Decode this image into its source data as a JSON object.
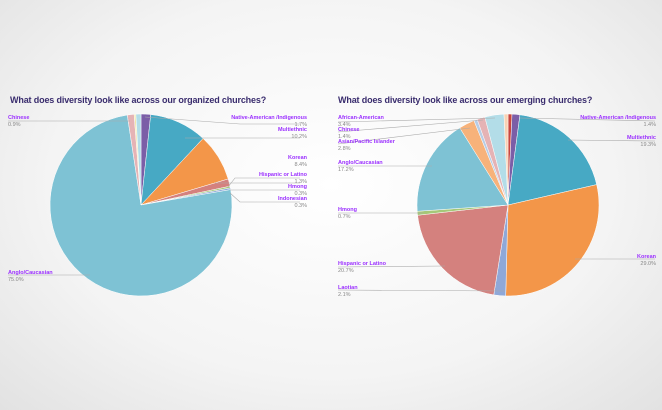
{
  "chart_data": [
    {
      "type": "pie",
      "title": "What does diversity look like across our organized churches?",
      "slices": [
        {
          "label": "Native-American /Indigenous",
          "pct_label": "1.7%",
          "value": 1.7,
          "color": "#7b5ea7"
        },
        {
          "label": "Multiethnic",
          "pct_label": "10.2%",
          "value": 10.2,
          "color": "#47a9c4"
        },
        {
          "label": "Korean",
          "pct_label": "8.4%",
          "value": 8.4,
          "color": "#f39649"
        },
        {
          "label": "Hispanic or Latino",
          "pct_label": "1.3%",
          "value": 1.3,
          "color": "#d4817e"
        },
        {
          "label": "Hmong",
          "pct_label": "0.3%",
          "value": 0.3,
          "color": "#a5c878"
        },
        {
          "label": "Indonesian",
          "pct_label": "0.3%",
          "value": 0.3,
          "color": "#8fa8d8"
        },
        {
          "label": "Anglo/Caucasian",
          "pct_label": "75.0%",
          "value": 75.0,
          "color": "#7ec2d4"
        },
        {
          "value": 1.2,
          "color": "#e5b3b5"
        },
        {
          "value": 0.3,
          "color": "#f0e6a8"
        },
        {
          "label": "Chinese",
          "pct_label": "0.9%",
          "value": 0.9,
          "color": "#b3dde8"
        }
      ]
    },
    {
      "type": "pie",
      "title": "What does diversity look like across our emerging churches?",
      "slices": [
        {
          "value": 0.7,
          "color": "#c9463d"
        },
        {
          "label": "Native-American /Indigenous",
          "pct_label": "1.4%",
          "value": 1.4,
          "color": "#7b5ea7"
        },
        {
          "label": "Multiethnic",
          "pct_label": "19.3%",
          "value": 19.3,
          "color": "#47a9c4"
        },
        {
          "label": "Korean",
          "pct_label": "29.0%",
          "value": 29.0,
          "color": "#f39649"
        },
        {
          "label": "Laotian",
          "pct_label": "2.1%",
          "value": 2.1,
          "color": "#8fa8d8"
        },
        {
          "label": "Hispanic or Latino",
          "pct_label": "20.7%",
          "value": 20.7,
          "color": "#d4817e"
        },
        {
          "label": "Hmong",
          "pct_label": "0.7%",
          "value": 0.7,
          "color": "#a5c878"
        },
        {
          "label": "Anglo/Caucasian",
          "pct_label": "17.2%",
          "value": 17.2,
          "color": "#7ec2d4"
        },
        {
          "label": "Asian/Pacific Islander",
          "pct_label": "2.8%",
          "value": 2.8,
          "color": "#f7b27a"
        },
        {
          "value": 0.6,
          "color": "#b7cde6"
        },
        {
          "label": "Chinese",
          "pct_label": "1.4%",
          "value": 1.4,
          "color": "#e5b3b5"
        },
        {
          "label": "African-American",
          "pct_label": "3.4%",
          "value": 3.4,
          "color": "#b3dde8"
        },
        {
          "value": 0.7,
          "color": "#f8d2b4"
        }
      ]
    }
  ]
}
